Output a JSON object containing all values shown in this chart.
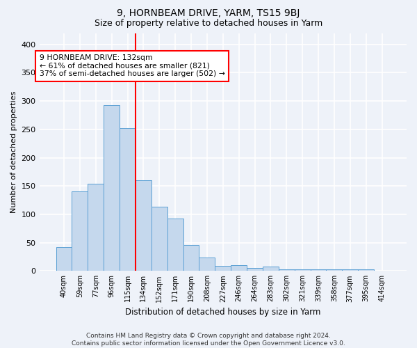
{
  "title": "9, HORNBEAM DRIVE, YARM, TS15 9BJ",
  "subtitle": "Size of property relative to detached houses in Yarm",
  "xlabel": "Distribution of detached houses by size in Yarm",
  "ylabel": "Number of detached properties",
  "categories": [
    "40sqm",
    "59sqm",
    "77sqm",
    "96sqm",
    "115sqm",
    "134sqm",
    "152sqm",
    "171sqm",
    "190sqm",
    "208sqm",
    "227sqm",
    "246sqm",
    "264sqm",
    "283sqm",
    "302sqm",
    "321sqm",
    "339sqm",
    "358sqm",
    "377sqm",
    "395sqm",
    "414sqm"
  ],
  "values": [
    42,
    141,
    154,
    293,
    252,
    160,
    113,
    93,
    46,
    24,
    9,
    10,
    5,
    8,
    3,
    3,
    3,
    3,
    3,
    3,
    0
  ],
  "bar_color": "#c5d8ed",
  "bar_edge_color": "#5a9fd4",
  "vline_color": "red",
  "vline_position": 5,
  "annotation_text": "9 HORNBEAM DRIVE: 132sqm\n← 61% of detached houses are smaller (821)\n37% of semi-detached houses are larger (502) →",
  "annotation_box_color": "white",
  "annotation_box_edge": "red",
  "background_color": "#eef2f9",
  "grid_color": "white",
  "ylim": [
    0,
    420
  ],
  "yticks": [
    0,
    50,
    100,
    150,
    200,
    250,
    300,
    350,
    400
  ],
  "title_fontsize": 10,
  "subtitle_fontsize": 9,
  "footer": "Contains HM Land Registry data © Crown copyright and database right 2024.\nContains public sector information licensed under the Open Government Licence v3.0."
}
